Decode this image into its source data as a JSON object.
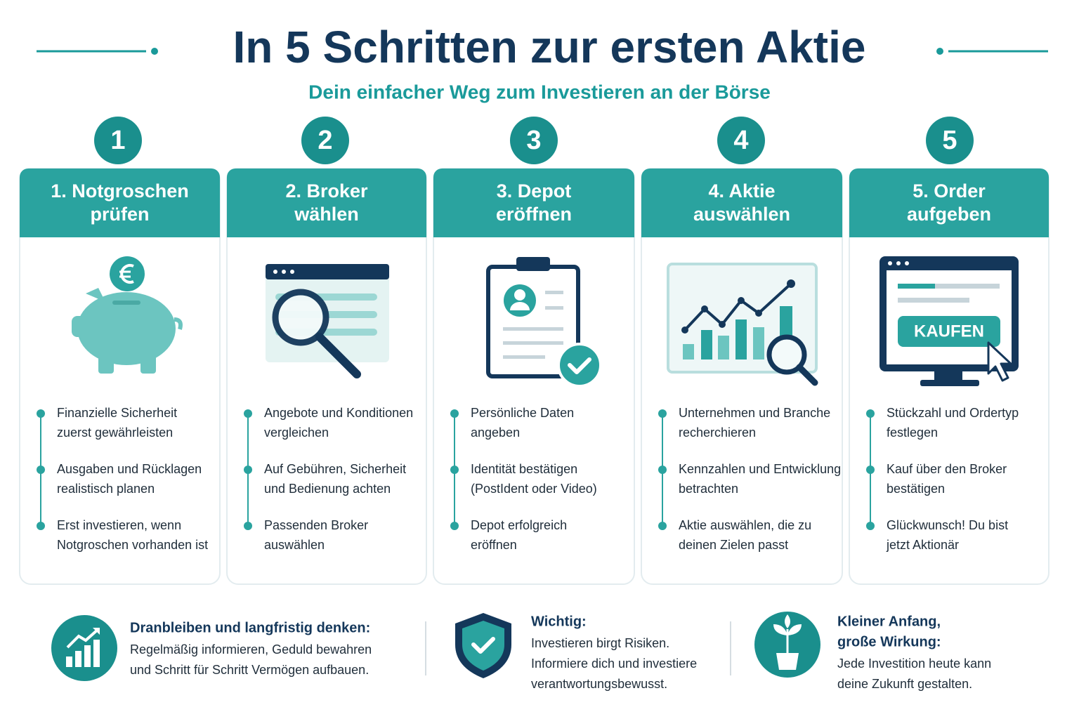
{
  "header": {
    "title": "In 5 Schritten zur ersten Aktie",
    "subtitle": "Dein einfacher Weg zum Investieren an der Börse"
  },
  "steps": [
    {
      "number": "1",
      "title": [
        "1. Notgroschen",
        "prüfen"
      ],
      "bullets": [
        [
          "Finanzielle Sicherheit",
          "zuerst gewährleisten"
        ],
        [
          "Ausgaben und Rücklagen",
          "realistisch planen"
        ],
        [
          "Erst investieren, wenn",
          "Notgroschen vorhanden ist"
        ]
      ]
    },
    {
      "number": "2",
      "title": [
        "2. Broker",
        "wählen"
      ],
      "bullets": [
        [
          "Angebote und Konditionen",
          "vergleichen"
        ],
        [
          "Auf Gebühren, Sicherheit",
          "und Bedienung achten"
        ],
        [
          "Passenden Broker",
          "auswählen"
        ]
      ]
    },
    {
      "number": "3",
      "title": [
        "3. Depot",
        "eröffnen"
      ],
      "bullets": [
        [
          "Persönliche Daten",
          "angeben"
        ],
        [
          "Identität bestätigen",
          "(PostIdent oder Video)"
        ],
        [
          "Depot erfolgreich",
          "eröffnen"
        ]
      ]
    },
    {
      "number": "4",
      "title": [
        "4. Aktie",
        "auswählen"
      ],
      "bullets": [
        [
          "Unternehmen und Branche",
          "recherchieren"
        ],
        [
          "Kennzahlen und Entwicklung",
          "betrachten"
        ],
        [
          "Aktie auswählen, die zu",
          "deinen Zielen passt"
        ]
      ]
    },
    {
      "number": "5",
      "title": [
        "5. Order",
        "aufgeben"
      ],
      "icon_label": "KAUFEN",
      "bullets": [
        [
          "Stückzahl und Ordertyp",
          "festlegen"
        ],
        [
          "Kauf über den Broker",
          "bestätigen"
        ],
        [
          "Glückwunsch! Du bist",
          "jetzt Aktionär"
        ]
      ]
    }
  ],
  "footer": [
    {
      "title": [
        "Dranbleiben und langfristig denken:"
      ],
      "text": [
        "Regelmäßig informieren, Geduld bewahren",
        "und Schritt für Schritt Vermögen aufbauen."
      ]
    },
    {
      "title": [
        "Wichtig:"
      ],
      "text": [
        "Investieren birgt Risiken.",
        "Informiere dich und investiere",
        "verantwortungsbewusst."
      ]
    },
    {
      "title": [
        "Kleiner Anfang,",
        "große Wirkung:"
      ],
      "text": [
        "Jede Investition heute kann",
        "deine Zukunft gestalten."
      ]
    }
  ]
}
